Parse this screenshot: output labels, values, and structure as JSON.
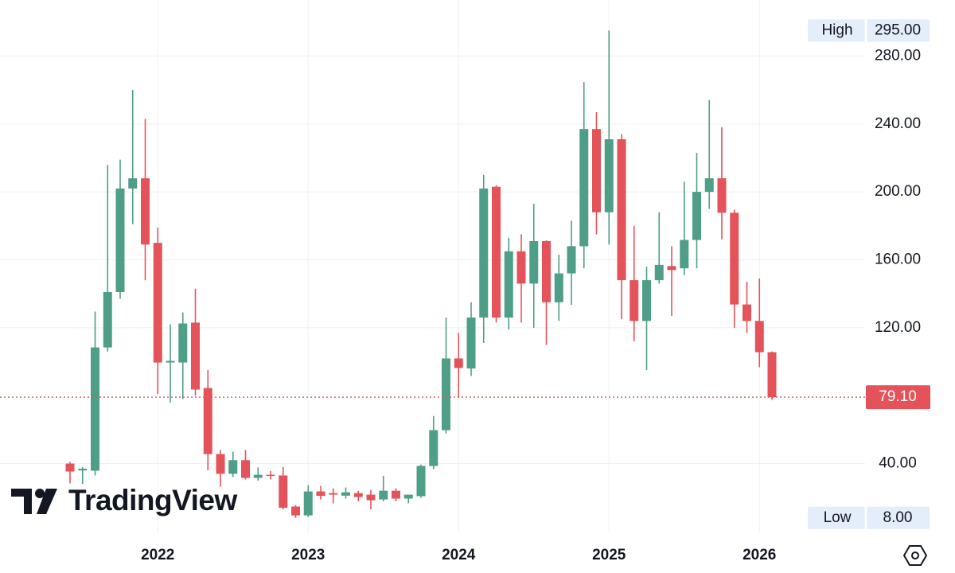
{
  "chart_data": {
    "type": "candlestick",
    "categories": [
      null,
      null,
      null,
      null,
      null,
      null,
      null,
      "2022",
      null,
      null,
      null,
      null,
      null,
      null,
      null,
      null,
      null,
      null,
      null,
      "2023",
      null,
      null,
      null,
      null,
      null,
      null,
      null,
      null,
      null,
      null,
      null,
      "2024",
      null,
      null,
      null,
      null,
      null,
      null,
      null,
      null,
      null,
      null,
      null,
      "2025",
      null,
      null,
      null,
      null,
      null,
      null,
      null,
      null,
      null,
      null,
      null,
      "2026",
      null
    ],
    "open": [
      40,
      36,
      35.8,
      108.4,
      141,
      202,
      208,
      170,
      99.5,
      99.5,
      123,
      84.5,
      45.6,
      34,
      42,
      31.6,
      33.4,
      33,
      14.7,
      9.5,
      23.6,
      22.6,
      21.1,
      22.6,
      21.7,
      18.9,
      24,
      19.4,
      20.8,
      38.6,
      59.7,
      101.9,
      96,
      126,
      203,
      126,
      165,
      146,
      171,
      135,
      152,
      168,
      237,
      188,
      231,
      148,
      124,
      148,
      156.3,
      155,
      171.7,
      200,
      208,
      187.7,
      133.7,
      124,
      105.6
    ],
    "high": [
      41,
      38,
      129.5,
      215.8,
      219,
      260,
      243,
      179,
      122,
      129,
      143,
      95,
      48,
      47,
      48,
      37.7,
      35.7,
      38,
      15.6,
      27.3,
      26.9,
      25.4,
      25.9,
      24,
      24.5,
      32.8,
      25.4,
      21.2,
      39.5,
      68,
      126,
      117,
      135,
      210,
      204,
      173,
      175,
      193,
      171.5,
      163,
      183,
      264.6,
      247,
      295,
      234,
      180,
      156,
      188,
      168,
      206,
      223,
      254,
      238,
      189.5,
      147,
      149,
      106
    ],
    "low": [
      28.3,
      28,
      33,
      106,
      137,
      181,
      148,
      81,
      76,
      78,
      80,
      36,
      26.4,
      32,
      30.6,
      30,
      30.7,
      13,
      8,
      8.6,
      18.9,
      16.6,
      19.4,
      17.8,
      13,
      17.8,
      17.8,
      16.6,
      19.8,
      36.7,
      57.8,
      79,
      91.6,
      111,
      123,
      119,
      123,
      120,
      110,
      124,
      133.5,
      155,
      175,
      169,
      125,
      112,
      95,
      146,
      127,
      151,
      155,
      190,
      172,
      120,
      117,
      96.7,
      77.5
    ],
    "close": [
      35.3,
      37,
      108.4,
      141,
      202,
      208,
      169,
      99.5,
      100.5,
      122.5,
      83.6,
      45.6,
      34,
      42,
      31.6,
      33.4,
      33,
      14,
      9.5,
      23.6,
      21,
      21.7,
      23.1,
      20.3,
      18.4,
      24,
      19.4,
      21.7,
      38.6,
      59.7,
      101.9,
      96.3,
      126,
      202,
      126,
      165,
      146,
      171,
      135,
      152,
      168,
      237,
      188,
      231,
      148,
      124,
      148,
      157,
      154,
      171.7,
      200,
      208,
      187.7,
      133.7,
      124,
      105.6,
      79.1
    ],
    "up_color": "#4f9e87",
    "down_color": "#e4525a",
    "ylim": [
      -1,
      313
    ],
    "yticks": [
      {
        "value": 40,
        "label": "40.00"
      },
      {
        "value": 120,
        "label": "120.00"
      },
      {
        "value": 160,
        "label": "160.00"
      },
      {
        "value": 200,
        "label": "200.00"
      },
      {
        "value": 240,
        "label": "240.00"
      },
      {
        "value": 280,
        "label": "280.00"
      }
    ],
    "grid": true,
    "price_line": {
      "value": 79.1,
      "label": "79.10"
    },
    "high_marker": {
      "label": "High",
      "value": 295,
      "value_label": "295.00"
    },
    "low_marker": {
      "label": "Low",
      "value": 8,
      "value_label": "8.00"
    },
    "watermark": "TradingView"
  }
}
